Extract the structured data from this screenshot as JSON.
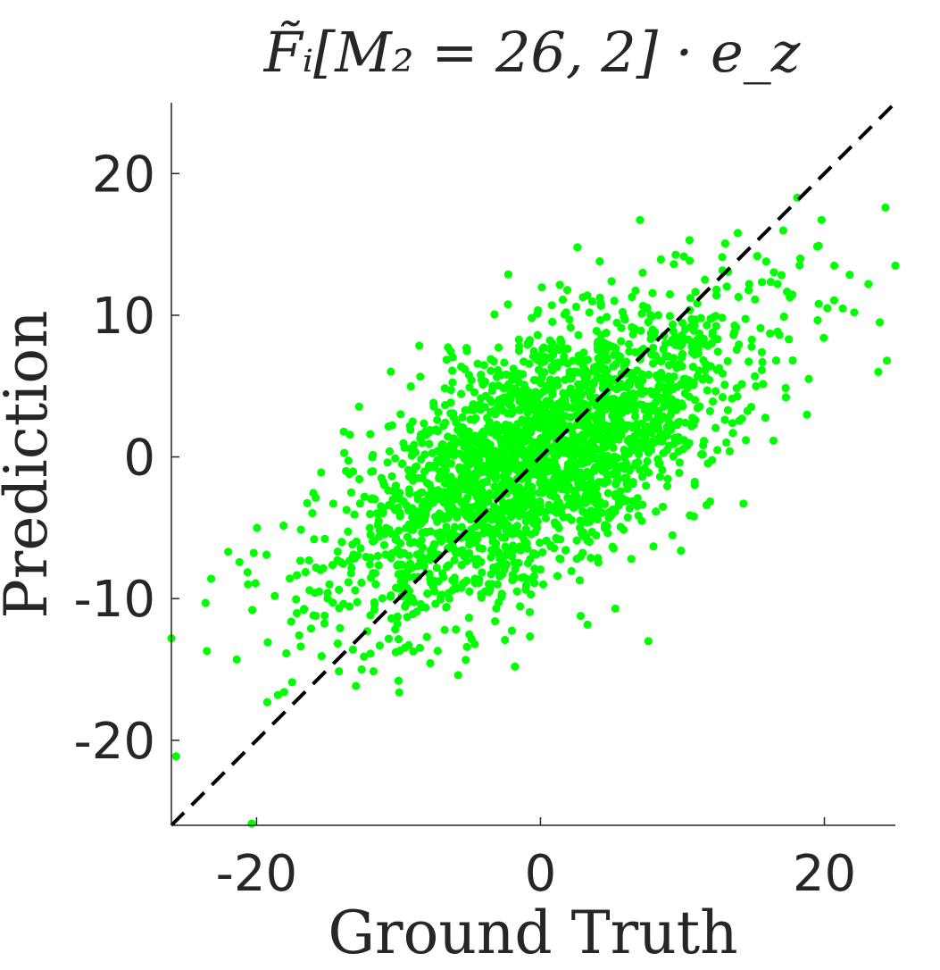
{
  "chart_data": {
    "type": "scatter",
    "title": "F̃ᵢ[M₂ = 26, 2] · e_z",
    "xlabel": "Ground Truth",
    "ylabel": "Prediction",
    "xlim": [
      -26,
      25
    ],
    "ylim": [
      -26,
      25
    ],
    "xticks": [
      -20,
      0,
      20
    ],
    "yticks": [
      -20,
      -10,
      0,
      10,
      20
    ],
    "xtick_labels": [
      "-20",
      "0",
      "20"
    ],
    "ytick_labels": [
      "-20",
      "-10",
      "0",
      "10",
      "20"
    ],
    "grid": false,
    "legend": "none",
    "reference_line": {
      "style": "dashed",
      "color": "#000000",
      "from": [
        -26,
        -26
      ],
      "to": [
        25,
        25
      ]
    },
    "series": [
      {
        "color": "#00ff00",
        "points": [
          [
            -26,
            -12.8
          ],
          [
            -23.5,
            -13.7
          ],
          [
            -23.6,
            -10.3
          ],
          [
            -23.2,
            -8.6
          ],
          [
            -22.0,
            -6.7
          ],
          [
            -21.4,
            -14.3
          ],
          [
            -20.6,
            -9.0
          ],
          [
            -20.3,
            -10.8
          ],
          [
            -19.3,
            -6.9
          ],
          [
            -18.5,
            -16.8
          ],
          [
            -17.5,
            -15.9
          ],
          [
            -17.0,
            -12.6
          ],
          [
            -16.3,
            -7.3
          ],
          [
            -15.6,
            -9.5
          ],
          [
            -15.2,
            -11.2
          ],
          [
            -14.6,
            -3.3
          ],
          [
            -14.0,
            -6.0
          ],
          [
            -13.7,
            -1.0
          ],
          [
            -13.2,
            -7.0
          ],
          [
            -12.6,
            -15.0
          ],
          [
            -12.2,
            -12.3
          ],
          [
            -11.8,
            -8.2
          ],
          [
            -11.4,
            -4.5
          ],
          [
            -11.0,
            -2.0
          ],
          [
            -10.5,
            -11.4
          ],
          [
            -10.0,
            -15.8
          ],
          [
            -9.6,
            -6.8
          ],
          [
            -9.3,
            -9.7
          ],
          [
            -9.0,
            2.5
          ],
          [
            -8.8,
            -0.7
          ],
          [
            -8.4,
            -4.7
          ],
          [
            -8.0,
            -12.7
          ],
          [
            -7.6,
            -2.6
          ],
          [
            -7.2,
            -6.9
          ],
          [
            -6.9,
            0.9
          ],
          [
            -6.5,
            -4.3
          ],
          [
            -6.1,
            2.8
          ],
          [
            -5.8,
            -15.4
          ],
          [
            -5.3,
            3.3
          ],
          [
            -5.0,
            -9.5
          ],
          [
            -4.6,
            -1.5
          ],
          [
            -4.2,
            5.8
          ],
          [
            -3.9,
            -4.0
          ],
          [
            -3.5,
            6.9
          ],
          [
            -3.2,
            -11.6
          ],
          [
            -2.9,
            0.3
          ],
          [
            -2.5,
            -3.4
          ],
          [
            -2.2,
            4.3
          ],
          [
            -1.8,
            -14.8
          ],
          [
            -1.5,
            7.8
          ],
          [
            -1.2,
            -0.9
          ],
          [
            -0.9,
            3.1
          ],
          [
            -0.5,
            -6.8
          ],
          [
            -0.2,
            8.6
          ],
          [
            0.1,
            -2.1
          ],
          [
            0.5,
            5.0
          ],
          [
            0.8,
            10.7
          ],
          [
            1.2,
            -8.4
          ],
          [
            1.5,
            2.9
          ],
          [
            1.9,
            6.6
          ],
          [
            2.2,
            0.8
          ],
          [
            2.6,
            14.8
          ],
          [
            2.9,
            -5.4
          ],
          [
            3.3,
            11.4
          ],
          [
            3.6,
            4.7
          ],
          [
            4.0,
            -2.7
          ],
          [
            4.3,
            7.9
          ],
          [
            4.7,
            1.9
          ],
          [
            5.0,
            12.4
          ],
          [
            5.4,
            -1.2
          ],
          [
            5.7,
            9.1
          ],
          [
            6.1,
            3.6
          ],
          [
            6.4,
            -7.2
          ],
          [
            6.8,
            6.1
          ],
          [
            7.2,
            13.0
          ],
          [
            7.6,
            -13.0
          ],
          [
            7.9,
            4.4
          ],
          [
            8.3,
            10.0
          ],
          [
            8.6,
            1.1
          ],
          [
            9.0,
            7.1
          ],
          [
            9.4,
            13.6
          ],
          [
            9.8,
            -0.4
          ],
          [
            10.1,
            5.5
          ],
          [
            10.5,
            15.3
          ],
          [
            10.9,
            2.6
          ],
          [
            11.3,
            9.8
          ],
          [
            11.7,
            -3.4
          ],
          [
            12.0,
            6.4
          ],
          [
            12.4,
            11.8
          ],
          [
            12.8,
            14.1
          ],
          [
            13.2,
            3.3
          ],
          [
            13.6,
            8.6
          ],
          [
            13.9,
            15.8
          ],
          [
            14.3,
            -3.3
          ],
          [
            14.7,
            12.2
          ],
          [
            15.1,
            5.7
          ],
          [
            15.5,
            9.1
          ],
          [
            15.9,
            13.8
          ],
          [
            16.7,
            12.2
          ],
          [
            17.5,
            8.3
          ],
          [
            18.3,
            14.0
          ],
          [
            18.9,
            5.5
          ],
          [
            19.6,
            14.9
          ],
          [
            20.2,
            10.5
          ],
          [
            20.7,
            13.5
          ],
          [
            22.1,
            10.2
          ],
          [
            23.1,
            12.2
          ],
          [
            23.8,
            6.0
          ],
          [
            23.9,
            9.5
          ],
          [
            24.3,
            17.6
          ],
          [
            24.4,
            6.8
          ],
          [
            25.0,
            13.5
          ]
        ],
        "cluster": {
          "n": 2400,
          "center": [
            0,
            0
          ],
          "sd_major": 8.0,
          "sd_minor": 3.6,
          "angle_deg": 34
        }
      }
    ]
  }
}
